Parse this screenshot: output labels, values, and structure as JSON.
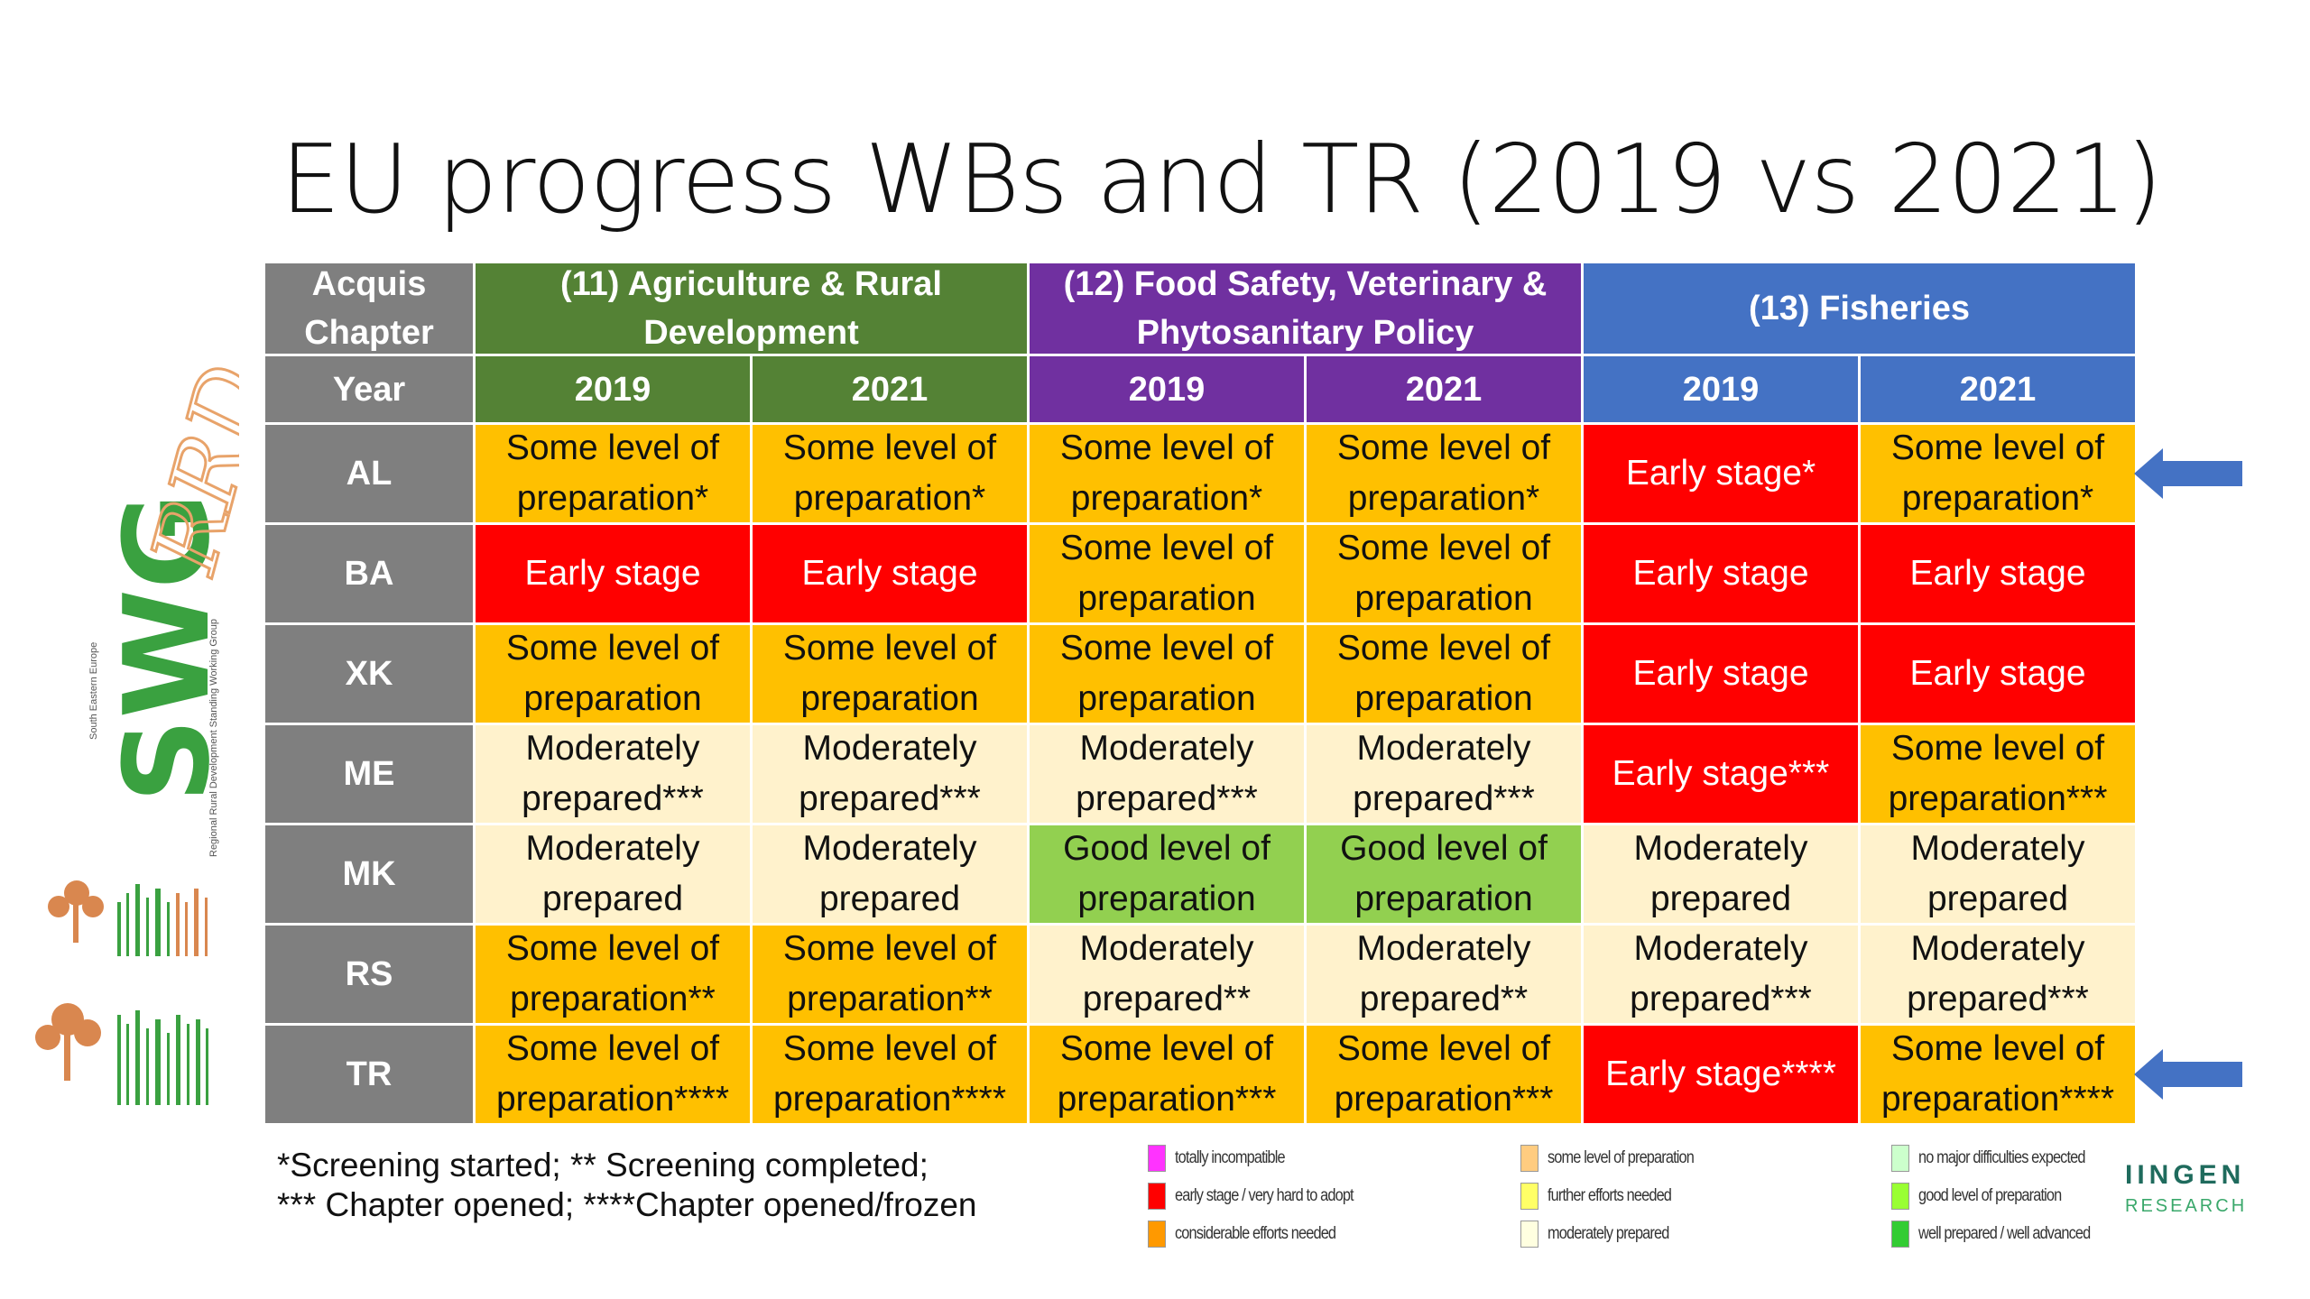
{
  "title": "EU progress WBs and TR (2019 vs 2021)",
  "header": {
    "acquis": "Acquis Chapter",
    "year": "Year",
    "groups": [
      {
        "label": "(11) Agriculture & Rural Development",
        "color": "#548235"
      },
      {
        "label": "(12) Food Safety, Veterinary & Phytosanitary Policy",
        "color": "#7030a0"
      },
      {
        "label": "(13) Fisheries",
        "color": "#4472c4"
      }
    ],
    "years": [
      "2019",
      "2021",
      "2019",
      "2021",
      "2019",
      "2021"
    ]
  },
  "colors": {
    "orange": "#ffc000",
    "red": "#ff0000",
    "cream": "#fff2cc",
    "lightgreen": "#92d050",
    "grey": "#7f7f7f",
    "arrow": "#4472c4"
  },
  "rows": [
    {
      "country": "AL",
      "cells": [
        {
          "text": "Some level of preparation*",
          "color": "orange"
        },
        {
          "text": "Some level of preparation*",
          "color": "orange"
        },
        {
          "text": "Some level of preparation*",
          "color": "orange"
        },
        {
          "text": "Some level of preparation*",
          "color": "orange"
        },
        {
          "text": "Early stage*",
          "color": "red"
        },
        {
          "text": "Some level of preparation*",
          "color": "orange"
        }
      ],
      "arrow": true
    },
    {
      "country": "BA",
      "cells": [
        {
          "text": "Early stage",
          "color": "red"
        },
        {
          "text": "Early stage",
          "color": "red"
        },
        {
          "text": "Some level of preparation",
          "color": "orange"
        },
        {
          "text": "Some level of preparation",
          "color": "orange"
        },
        {
          "text": "Early stage",
          "color": "red"
        },
        {
          "text": "Early stage",
          "color": "red"
        }
      ],
      "arrow": false
    },
    {
      "country": "XK",
      "cells": [
        {
          "text": "Some level of preparation",
          "color": "orange"
        },
        {
          "text": "Some level of preparation",
          "color": "orange"
        },
        {
          "text": "Some level of preparation",
          "color": "orange"
        },
        {
          "text": "Some level of preparation",
          "color": "orange"
        },
        {
          "text": "Early stage",
          "color": "red"
        },
        {
          "text": "Early stage",
          "color": "red"
        }
      ],
      "arrow": false
    },
    {
      "country": "ME",
      "cells": [
        {
          "text": "Moderately prepared***",
          "color": "cream"
        },
        {
          "text": "Moderately prepared***",
          "color": "cream"
        },
        {
          "text": "Moderately prepared***",
          "color": "cream"
        },
        {
          "text": "Moderately prepared***",
          "color": "cream"
        },
        {
          "text": "Early stage***",
          "color": "red"
        },
        {
          "text": "Some level of preparation***",
          "color": "orange"
        }
      ],
      "arrow": false
    },
    {
      "country": "MK",
      "cells": [
        {
          "text": "Moderately prepared",
          "color": "cream"
        },
        {
          "text": "Moderately prepared",
          "color": "cream"
        },
        {
          "text": "Good level of preparation",
          "color": "lightgreen"
        },
        {
          "text": "Good level of preparation",
          "color": "lightgreen"
        },
        {
          "text": "Moderately prepared",
          "color": "cream"
        },
        {
          "text": "Moderately prepared",
          "color": "cream"
        }
      ],
      "arrow": false
    },
    {
      "country": "RS",
      "cells": [
        {
          "text": "Some level of preparation**",
          "color": "orange"
        },
        {
          "text": "Some level of preparation**",
          "color": "orange"
        },
        {
          "text": "Moderately prepared**",
          "color": "cream"
        },
        {
          "text": "Moderately prepared**",
          "color": "cream"
        },
        {
          "text": "Moderately prepared***",
          "color": "cream"
        },
        {
          "text": "Moderately prepared***",
          "color": "cream"
        }
      ],
      "arrow": false
    },
    {
      "country": "TR",
      "cells": [
        {
          "text": "Some level of preparation****",
          "color": "orange"
        },
        {
          "text": "Some level of preparation****",
          "color": "orange"
        },
        {
          "text": "Some level of preparation***",
          "color": "orange"
        },
        {
          "text": "Some level of preparation***",
          "color": "orange"
        },
        {
          "text": "Early stage****",
          "color": "red"
        },
        {
          "text": "Some level of preparation****",
          "color": "orange"
        }
      ],
      "arrow": true
    }
  ],
  "footnote": {
    "line1": "*Screening started; ** Screening completed;",
    "line2": "*** Chapter opened; ****Chapter opened/frozen"
  },
  "legend": [
    [
      {
        "label": "totally incompatible",
        "color": "#ff33ff"
      },
      {
        "label": "early stage / very hard to adopt",
        "color": "#ff0000"
      },
      {
        "label": "considerable efforts needed",
        "color": "#ff9900"
      }
    ],
    [
      {
        "label": "some level of preparation",
        "color": "#ffcc80"
      },
      {
        "label": "further efforts needed",
        "color": "#ffff66"
      },
      {
        "label": "moderately prepared",
        "color": "#ffffe0"
      }
    ],
    [
      {
        "label": "no major difficulties expected",
        "color": "#ccffcc"
      },
      {
        "label": "good level of preparation",
        "color": "#99ff33"
      },
      {
        "label": "well prepared / well advanced",
        "color": "#33cc33"
      }
    ]
  ],
  "logo": {
    "name": "SWG RRD",
    "caption": "South Eastern Europe",
    "subcaption": "Regional Rural Development Standing Working Group"
  },
  "partner": {
    "line1": "IINGEN",
    "line2": "RESEARCH"
  }
}
